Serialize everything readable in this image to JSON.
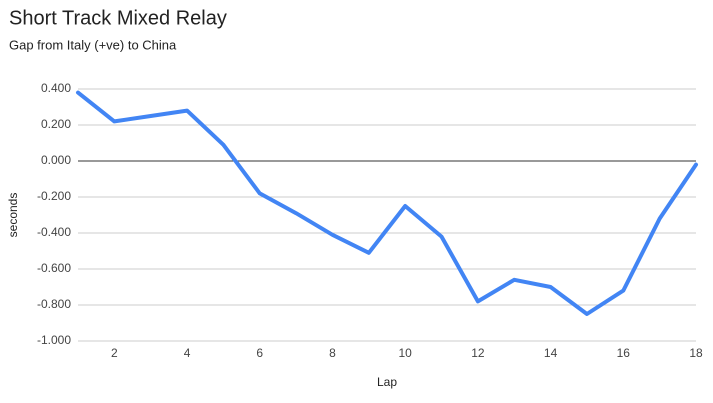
{
  "chart_data": {
    "type": "line",
    "title": "Short Track Mixed Relay",
    "subtitle": "Gap from Italy (+ve) to China",
    "x_label": "Lap",
    "y_label": "seconds",
    "x": [
      1,
      2,
      3,
      4,
      5,
      6,
      7,
      8,
      9,
      10,
      11,
      12,
      13,
      14,
      15,
      16,
      17,
      18
    ],
    "series": [
      {
        "color": "#4285f4",
        "values": [
          0.38,
          0.22,
          0.25,
          0.28,
          0.09,
          -0.18,
          -0.29,
          -0.41,
          -0.51,
          -0.25,
          -0.42,
          -0.78,
          -0.66,
          -0.7,
          -0.85,
          -0.72,
          -0.32,
          -0.02
        ]
      }
    ],
    "xlim": [
      1,
      18
    ],
    "xticks": [
      2,
      4,
      6,
      8,
      10,
      12,
      14,
      16,
      18
    ],
    "ylim": [
      -1,
      0.4
    ],
    "yticks": [
      {
        "value": -1,
        "label": "-1.000"
      },
      {
        "value": -0.8,
        "label": "-0.800"
      },
      {
        "value": -0.6,
        "label": "-0.600"
      },
      {
        "value": -0.4,
        "label": "-0.400"
      },
      {
        "value": -0.2,
        "label": "-0.200"
      },
      {
        "value": 0,
        "label": "0.000"
      },
      {
        "value": 0.2,
        "label": "0.200"
      },
      {
        "value": 0.4,
        "label": "0.400"
      }
    ],
    "grid": true
  }
}
